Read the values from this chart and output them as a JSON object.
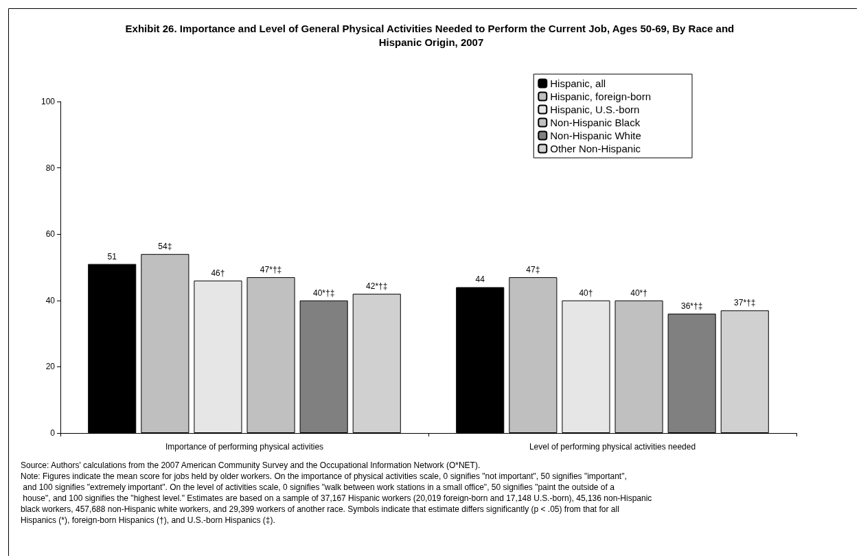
{
  "chart_data": {
    "type": "bar",
    "title": "Exhibit 26. Importance and Level of General Physical Activities Needed to Perform the Current Job, Ages 50-69, By Race and Hispanic Origin, 2007",
    "categories": [
      "Importance of performing physical activities",
      "Level of performing physical activities needed"
    ],
    "series": [
      {
        "name": "Hispanic, all",
        "color": "#000000",
        "values": [
          51,
          44
        ],
        "value_labels": [
          "51",
          "44"
        ]
      },
      {
        "name": "Hispanic, foreign-born",
        "color": "#bfbfbf",
        "values": [
          54,
          47
        ],
        "value_labels": [
          "54‡",
          "47‡"
        ]
      },
      {
        "name": "Hispanic, U.S.-born",
        "color": "#e6e6e6",
        "values": [
          46,
          40
        ],
        "value_labels": [
          "46†",
          "40†"
        ]
      },
      {
        "name": "Non-Hispanic Black",
        "color": "#c0c0c0",
        "values": [
          47,
          40
        ],
        "value_labels": [
          "47*†‡",
          "40*†"
        ]
      },
      {
        "name": "Non-Hispanic White",
        "color": "#808080",
        "values": [
          40,
          36
        ],
        "value_labels": [
          "40*†‡",
          "36*†‡"
        ]
      },
      {
        "name": "Other Non-Hispanic",
        "color": "#d0d0d0",
        "values": [
          42,
          37
        ],
        "value_labels": [
          "42*†‡",
          "37*†‡"
        ]
      }
    ],
    "ylim": [
      0,
      100
    ],
    "yticks": [
      0,
      20,
      40,
      60,
      80,
      100
    ],
    "grid": false,
    "legend": "top right",
    "annotations": [
      "Source: Authors' calculations from the 2007 American Community Survey and the Occupational Information Network (O*NET).",
      "Note: Figures indicate the mean score for jobs held by older workers. On the importance of physical activities scale, 0 signifies \"not important\", 50 signifies \"important\", and 100 signifies \"extremely important\". On the level of activities scale, 0 signifies \"walk between work stations in a small office\", 50 signifies \"paint the outside of a house\", and 100 signifies the \"highest level.\" Estimates are based on a sample of 37,167 Hispanic workers (20,019 foreign-born and 17,148 U.S.-born), 45,136 non-Hispanic black workers, 457,688 non-Hispanic white workers, and 29,399 workers of another race. Symbols indicate that estimate differs significantly (p < .05) from that for all Hispanics (*), foreign-born Hispanics (†), and U.S.-born Hispanics (‡)."
    ]
  }
}
